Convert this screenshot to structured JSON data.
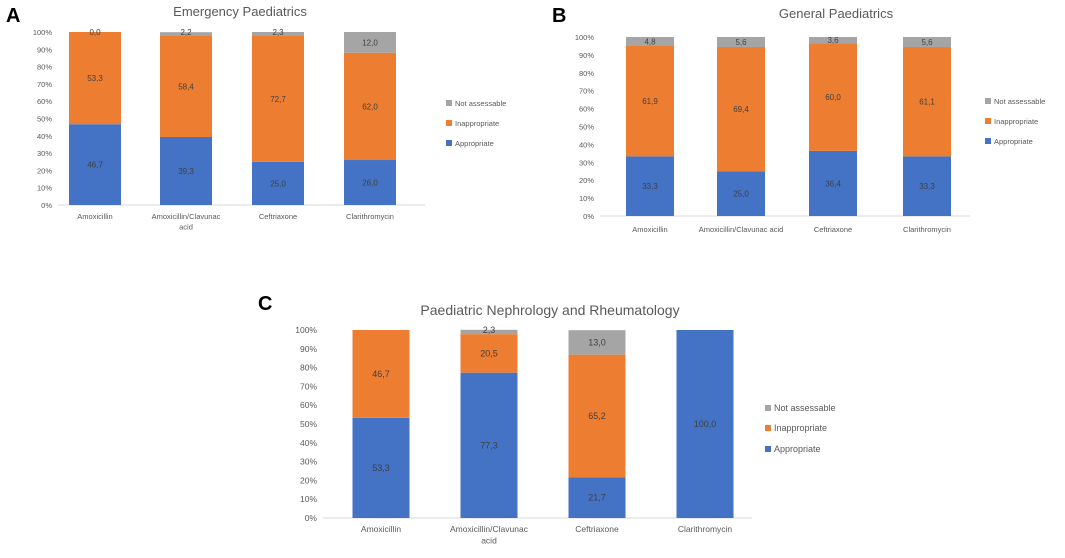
{
  "colors": {
    "appropriate": "#4472C4",
    "inappropriate": "#ED7D31",
    "not_assessable": "#A5A5A5",
    "axis": "#D9D9D9",
    "text": "#595959"
  },
  "chart_data": [
    {
      "panel_label": "A",
      "type": "bar",
      "stacked": true,
      "title": "Emergency Paediatrics",
      "categories": [
        "Amoxicillin",
        "Amoxicillin/Clavunac acid",
        "Ceftriaxone",
        "Clarithromycin"
      ],
      "series": [
        {
          "name": "Appropriate",
          "values": [
            46.7,
            39.3,
            25.0,
            26.0
          ],
          "labels": [
            "46,7",
            "39,3",
            "25,0",
            "26,0"
          ]
        },
        {
          "name": "Inappropriate",
          "values": [
            53.3,
            58.4,
            72.7,
            62.0
          ],
          "labels": [
            "53,3",
            "58,4",
            "72,7",
            "62,0"
          ]
        },
        {
          "name": "Not assessable",
          "values": [
            0.0,
            2.2,
            2.3,
            12.0
          ],
          "labels": [
            "0,0",
            "2,2",
            "2,3",
            "12,0"
          ]
        }
      ],
      "legend": [
        "Not assessable",
        "Inappropriate",
        "Appropriate"
      ],
      "yticks": [
        "0%",
        "10%",
        "20%",
        "30%",
        "40%",
        "50%",
        "60%",
        "70%",
        "80%",
        "90%",
        "100%"
      ],
      "ylim": [
        0,
        100
      ],
      "xlabel": "",
      "ylabel": ""
    },
    {
      "panel_label": "B",
      "type": "bar",
      "stacked": true,
      "title": "General Paediatrics",
      "categories": [
        "Amoxicillin",
        "Amoxicillin/Clavunac acid",
        "Ceftriaxone",
        "Clarithromycin"
      ],
      "series": [
        {
          "name": "Appropriate",
          "values": [
            33.3,
            25.0,
            36.4,
            33.3
          ],
          "labels": [
            "33,3",
            "25,0",
            "36,4",
            "33,3"
          ]
        },
        {
          "name": "Inappropriate",
          "values": [
            61.9,
            69.4,
            60.0,
            61.1
          ],
          "labels": [
            "61,9",
            "69,4",
            "60,0",
            "61,1"
          ]
        },
        {
          "name": "Not assessable",
          "values": [
            4.8,
            5.6,
            3.6,
            5.6
          ],
          "labels": [
            "4,8",
            "5,6",
            "3,6",
            "5,6"
          ]
        }
      ],
      "legend": [
        "Not assessable",
        "Inappropriate",
        "Appropriate"
      ],
      "yticks": [
        "0%",
        "10%",
        "20%",
        "30%",
        "40%",
        "50%",
        "60%",
        "70%",
        "80%",
        "90%",
        "100%"
      ],
      "ylim": [
        0,
        100
      ],
      "xlabel": "",
      "ylabel": ""
    },
    {
      "panel_label": "C",
      "type": "bar",
      "stacked": true,
      "title": "Paediatric Nephrology and Rheumatology",
      "categories": [
        "Amoxicillin",
        "Amoxicillin/Clavunac acid",
        "Ceftriaxone",
        "Clarithromycin"
      ],
      "series": [
        {
          "name": "Appropriate",
          "values": [
            53.3,
            77.3,
            21.7,
            100.0
          ],
          "labels": [
            "53,3",
            "77,3",
            "21,7",
            "100,0"
          ]
        },
        {
          "name": "Inappropriate",
          "values": [
            46.7,
            20.5,
            65.2,
            0
          ],
          "labels": [
            "46,7",
            "20,5",
            "65,2",
            ""
          ]
        },
        {
          "name": "Not assessable",
          "values": [
            0,
            2.3,
            13.0,
            0
          ],
          "labels": [
            "",
            "2,3",
            "13,0",
            ""
          ]
        }
      ],
      "legend": [
        "Not assessable",
        "Inappropriate",
        "Appropriate"
      ],
      "yticks": [
        "0%",
        "10%",
        "20%",
        "30%",
        "40%",
        "50%",
        "60%",
        "70%",
        "80%",
        "90%",
        "100%"
      ],
      "ylim": [
        0,
        100
      ],
      "xlabel": "",
      "ylabel": ""
    }
  ]
}
